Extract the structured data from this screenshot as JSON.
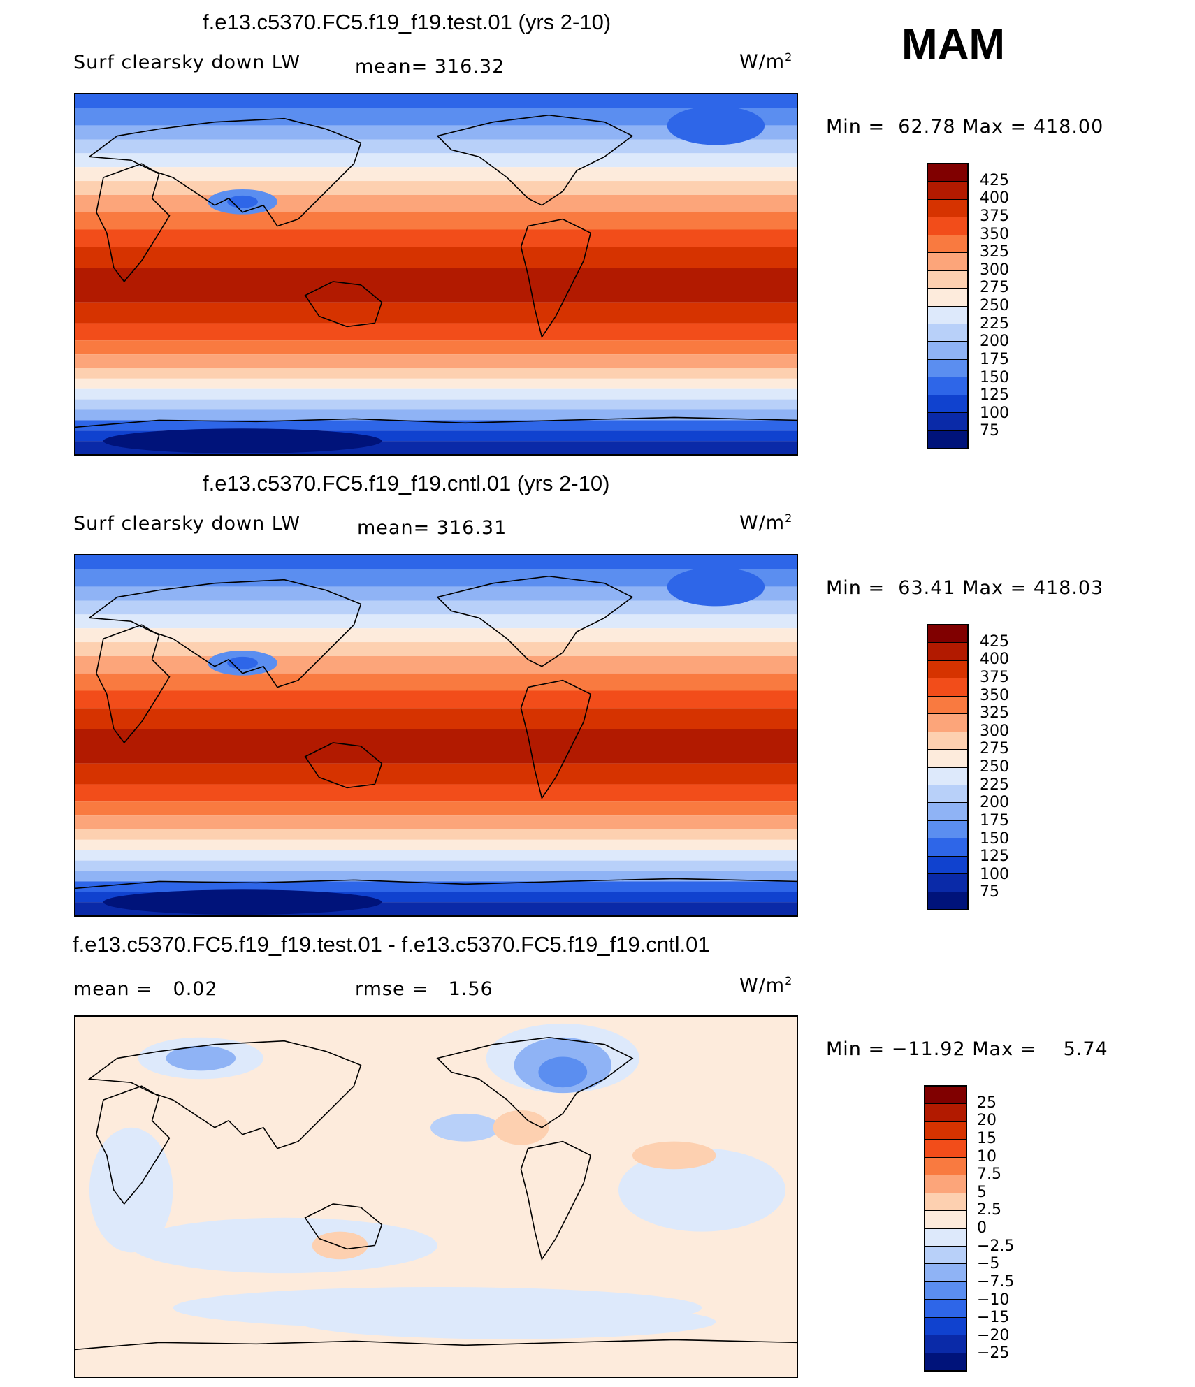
{
  "season": "MAM",
  "units": "W/m",
  "units_sup": "2",
  "panels": [
    {
      "title": "f.e13.c5370.FC5.f19_f19.test.01 (yrs 2-10)",
      "field": "Surf clearsky down LW",
      "mean_label": "mean=",
      "mean": "316.32",
      "min_label": "Min =",
      "min": "62.78",
      "max_label": "Max =",
      "max": "418.00"
    },
    {
      "title": "f.e13.c5370.FC5.f19_f19.cntl.01 (yrs 2-10)",
      "field": "Surf clearsky down LW",
      "mean_label": "mean=",
      "mean": "316.31",
      "min_label": "Min =",
      "min": "63.41",
      "max_label": "Max =",
      "max": "418.03"
    },
    {
      "title": "f.e13.c5370.FC5.f19_f19.test.01 - f.e13.c5370.FC5.f19_f19.cntl.01",
      "mean_label": "mean =",
      "mean": "0.02",
      "rmse_label": "rmse =",
      "rmse": "1.56",
      "min_label": "Min =",
      "min": "−11.92",
      "max_label": "Max =",
      "max": "5.74"
    }
  ],
  "chart_data": [
    {
      "type": "heatmap",
      "title": "f.e13.c5370.FC5.f19_f19.test.01 (yrs 2-10)",
      "variable": "Surf clearsky down LW",
      "units": "W/m2",
      "mean": 316.32,
      "min": 62.78,
      "max": 418.0,
      "levels": [
        "425",
        "400",
        "375",
        "350",
        "325",
        "300",
        "275",
        "250",
        "225",
        "200",
        "175",
        "150",
        "125",
        "100",
        "75"
      ],
      "colors": [
        "#800000",
        "#b21a00",
        "#d63300",
        "#f24d1a",
        "#f97a40",
        "#fca57a",
        "#fdd0b0",
        "#fdebdc",
        "#dde9fb",
        "#b8d0f9",
        "#8fb3f5",
        "#5b8ef0",
        "#2e66e8",
        "#1042cf",
        "#0a2aa8",
        "#00137a"
      ]
    },
    {
      "type": "heatmap",
      "title": "f.e13.c5370.FC5.f19_f19.cntl.01 (yrs 2-10)",
      "variable": "Surf clearsky down LW",
      "units": "W/m2",
      "mean": 316.31,
      "min": 63.41,
      "max": 418.03,
      "levels": [
        "425",
        "400",
        "375",
        "350",
        "325",
        "300",
        "275",
        "250",
        "225",
        "200",
        "175",
        "150",
        "125",
        "100",
        "75"
      ],
      "colors": [
        "#800000",
        "#b21a00",
        "#d63300",
        "#f24d1a",
        "#f97a40",
        "#fca57a",
        "#fdd0b0",
        "#fdebdc",
        "#dde9fb",
        "#b8d0f9",
        "#8fb3f5",
        "#5b8ef0",
        "#2e66e8",
        "#1042cf",
        "#0a2aa8",
        "#00137a"
      ]
    },
    {
      "type": "heatmap",
      "title": "f.e13.c5370.FC5.f19_f19.test.01 - f.e13.c5370.FC5.f19_f19.cntl.01",
      "units": "W/m2",
      "mean": 0.02,
      "rmse": 1.56,
      "min": -11.92,
      "max": 5.74,
      "levels": [
        "25",
        "20",
        "15",
        "10",
        "7.5",
        "5",
        "2.5",
        "0",
        "−2.5",
        "−5",
        "−7.5",
        "−10",
        "−15",
        "−20",
        "−25"
      ],
      "colors": [
        "#800000",
        "#b21a00",
        "#d63300",
        "#f24d1a",
        "#f97a40",
        "#fca57a",
        "#fdd0b0",
        "#fdebdc",
        "#dde9fb",
        "#b8d0f9",
        "#8fb3f5",
        "#5b8ef0",
        "#2e66e8",
        "#1042cf",
        "#0a2aa8",
        "#00137a"
      ]
    }
  ]
}
